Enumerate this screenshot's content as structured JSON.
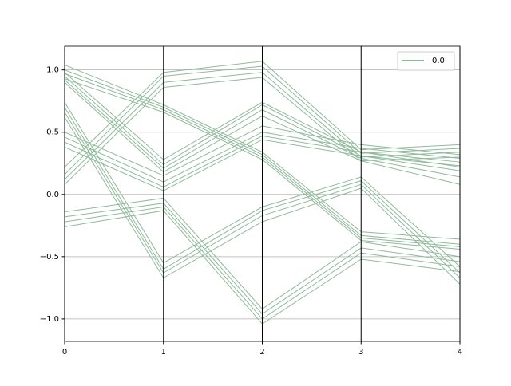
{
  "chart_data": {
    "type": "parallel",
    "x": [
      0,
      1,
      2,
      3,
      4
    ],
    "xlim": [
      0,
      4
    ],
    "xticks": [
      0,
      1,
      2,
      3,
      4
    ],
    "ylim": [
      -1.18,
      1.19
    ],
    "yticks": [
      {
        "value": -1,
        "label": "−1.0"
      },
      {
        "value": -0.5,
        "label": "−0.5"
      },
      {
        "value": 0,
        "label": "0.0"
      },
      {
        "value": 0.5,
        "label": "0.5"
      },
      {
        "value": 1,
        "label": "1.0"
      }
    ],
    "grid": true,
    "legend": "upper right",
    "series": [
      {
        "name": "0.0",
        "color": "#8fb99a",
        "values": [
          [
            1.04,
            0.72,
            0.34,
            -0.3,
            -0.36
          ],
          [
            1.0,
            0.7,
            0.32,
            -0.33,
            -0.4
          ],
          [
            0.97,
            0.68,
            0.3,
            -0.35,
            -0.42
          ],
          [
            0.93,
            0.66,
            0.28,
            -0.37,
            -0.44
          ],
          [
            0.98,
            0.28,
            0.74,
            0.34,
            0.22
          ],
          [
            0.95,
            0.24,
            0.72,
            0.31,
            0.19
          ],
          [
            0.92,
            0.21,
            0.68,
            0.29,
            0.14
          ],
          [
            0.9,
            0.18,
            0.63,
            0.27,
            0.08
          ],
          [
            0.74,
            -0.55,
            -0.1,
            0.14,
            -0.58
          ],
          [
            0.7,
            -0.6,
            -0.13,
            0.11,
            -0.63
          ],
          [
            0.66,
            -0.63,
            -0.17,
            0.08,
            -0.67
          ],
          [
            0.62,
            -0.67,
            -0.22,
            0.05,
            -0.72
          ],
          [
            0.5,
            0.15,
            0.55,
            0.4,
            0.32
          ],
          [
            0.46,
            0.1,
            0.5,
            0.37,
            0.29
          ],
          [
            0.42,
            0.06,
            0.47,
            0.34,
            0.26
          ],
          [
            0.38,
            0.03,
            0.44,
            0.31,
            0.23
          ],
          [
            0.22,
            0.98,
            1.07,
            0.36,
            0.4
          ],
          [
            0.16,
            0.95,
            1.03,
            0.33,
            0.37
          ],
          [
            0.12,
            0.9,
            0.98,
            0.3,
            0.34
          ],
          [
            0.08,
            0.86,
            0.94,
            0.27,
            0.3
          ],
          [
            -0.14,
            -0.03,
            -0.92,
            -0.38,
            -0.5
          ],
          [
            -0.18,
            -0.07,
            -0.96,
            -0.43,
            -0.54
          ],
          [
            -0.22,
            -0.1,
            -1.0,
            -0.47,
            -0.58
          ],
          [
            -0.26,
            -0.13,
            -1.04,
            -0.52,
            -0.62
          ]
        ]
      }
    ]
  }
}
